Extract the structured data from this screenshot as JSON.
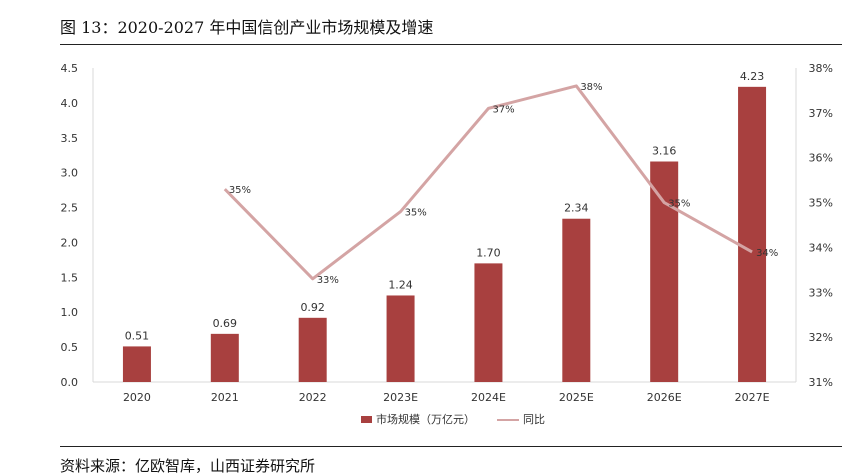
{
  "page": {
    "title": "图 13：2020-2027 年中国信创产业市场规模及增速",
    "source": "资料来源：亿欧智库，山西证券研究所"
  },
  "chart_data": {
    "type": "bar",
    "categories": [
      "2020",
      "2021",
      "2022",
      "2023E",
      "2024E",
      "2025E",
      "2026E",
      "2027E"
    ],
    "series": [
      {
        "name": "市场规模（万亿元）",
        "type": "bar",
        "axis": "left",
        "values": [
          0.51,
          0.69,
          0.92,
          1.24,
          1.7,
          2.34,
          3.16,
          4.23
        ],
        "labels": [
          "0.51",
          "0.69",
          "0.92",
          "1.24",
          "1.70",
          "2.34",
          "3.16",
          "4.23"
        ],
        "color": "#a8403f"
      },
      {
        "name": "同比",
        "type": "line",
        "axis": "right",
        "values": [
          null,
          35.3,
          33.3,
          34.8,
          37.1,
          37.6,
          35.0,
          33.9
        ],
        "labels": [
          null,
          "35%",
          "33%",
          "35%",
          "37%",
          "38%",
          "35%",
          "34%"
        ],
        "color": "#d4a4a4"
      }
    ],
    "y_left": {
      "ylim": [
        0,
        4.5
      ],
      "ticks": [
        "0.0",
        "0.5",
        "1.0",
        "1.5",
        "2.0",
        "2.5",
        "3.0",
        "3.5",
        "4.0",
        "4.5"
      ]
    },
    "y_right": {
      "ylim": [
        31,
        38
      ],
      "ticks": [
        "31%",
        "32%",
        "33%",
        "34%",
        "35%",
        "36%",
        "37%",
        "38%"
      ]
    },
    "grid": false,
    "legend_position": "bottom"
  }
}
